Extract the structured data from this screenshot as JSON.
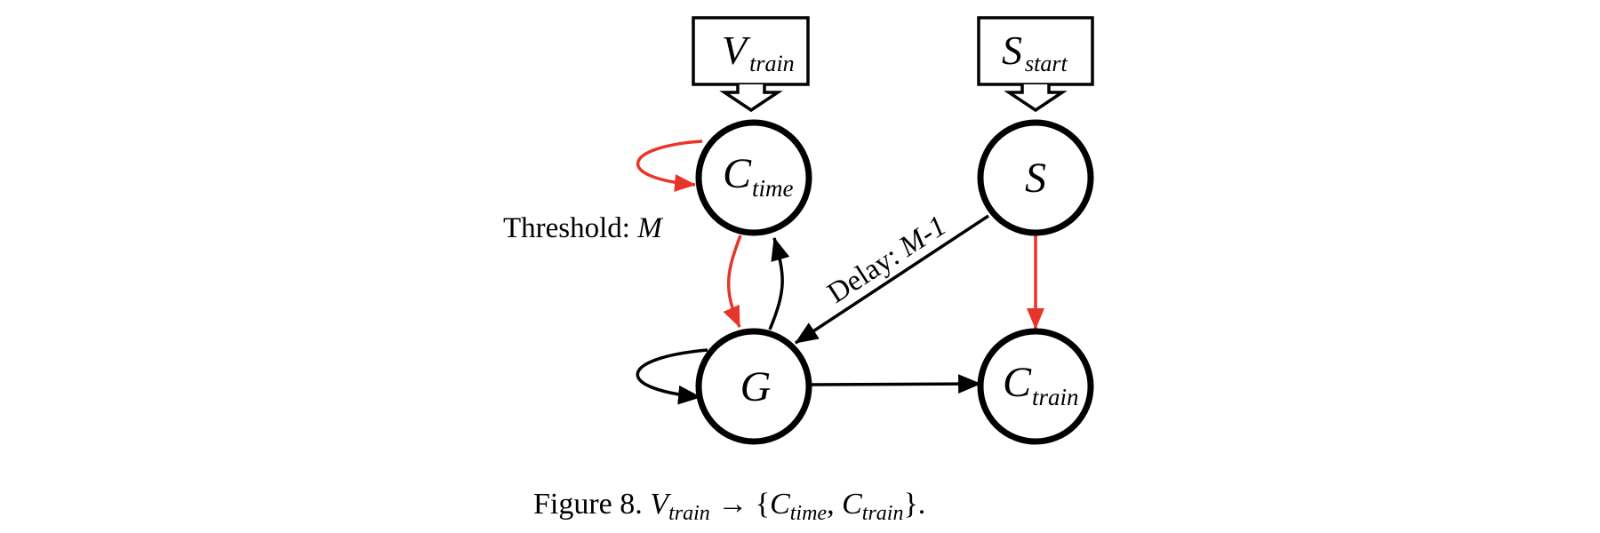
{
  "colors": {
    "stroke": "#000000",
    "red_edge": "#e8352a",
    "background": "#ffffff"
  },
  "inputs": {
    "v_train": {
      "main": "V",
      "sub": "train"
    },
    "s_start": {
      "main": "S",
      "sub": "start"
    }
  },
  "nodes": {
    "c_time": {
      "main": "C",
      "sub": "time"
    },
    "s": {
      "main": "S"
    },
    "g": {
      "main": "G"
    },
    "c_train": {
      "main": "C",
      "sub": "train"
    }
  },
  "labels": {
    "threshold_text": "Threshold: ",
    "threshold_var": "M",
    "delay_text": "Delay: ",
    "delay_var": "M-1"
  },
  "caption": {
    "prefix": "Figure 8. ",
    "v": "V",
    "v_sub": "train",
    "arrow": " → {",
    "c1": "C",
    "c1_sub": "time",
    "comma": ", ",
    "c2": "C",
    "c2_sub": "train",
    "suffix": "}."
  }
}
